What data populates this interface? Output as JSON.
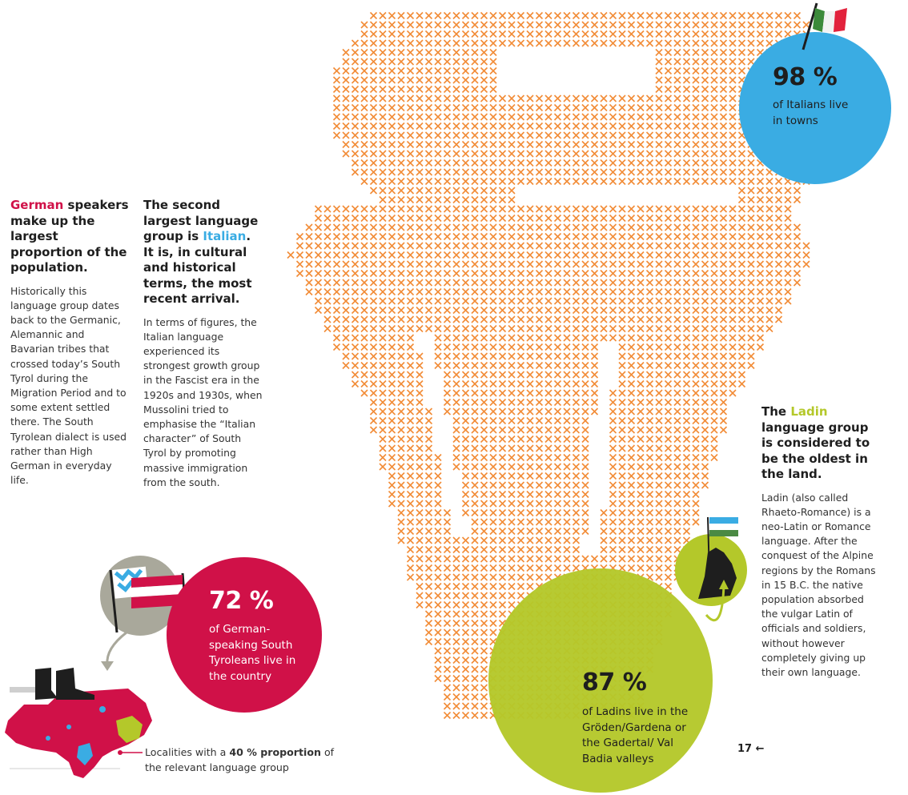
{
  "colors": {
    "german": "#d01148",
    "italian": "#3aace3",
    "ladin": "#b4c82a",
    "cross": "#f28c37",
    "grey": "#a9a89b"
  },
  "icons": [
    "cross-stitch-map",
    "italian-flag-icon",
    "tyrolean-flag-icon",
    "bavarian-flag-icon",
    "ladin-flag-icon",
    "hand-icon",
    "boots-icon",
    "south-tyrol-map"
  ],
  "german": {
    "keyword": "German",
    "heading_rest": " speakers make up the largest proportion of the population.",
    "body": "Historically this language group dates back to the Germanic, Alemannic and Bavarian tribes that crossed today’s South Tyrol during the Migration Period and to some extent settled there. The South Tyrolean dialect is used rather than High German in everyday life."
  },
  "italian": {
    "heading_pre": "The second largest language group is ",
    "keyword": "Italian",
    "heading_post": ". It is, in cultural and historical terms, the most recent arrival.",
    "body": "In terms of figures, the Italian language experienced its strongest growth group in the Fascist era in the 1920s and 1930s, when Mussolini tried to emphasise the “Italian character” of South Tyrol by promoting massive immigration from the south."
  },
  "ladin": {
    "heading_pre": "The ",
    "keyword": "Ladin",
    "heading_post": " language group is considered to be the oldest in the land.",
    "body": "Ladin (also called Rhaeto-Romance) is a neo-Latin or Romance language. After the conquest of the Alpine regions by the Romans in 15 B.C. the native population absorbed the vulgar Latin of officials and soldiers, without however completely giving up their own language."
  },
  "stats": {
    "italian": {
      "value": "98 %",
      "text": "of Italians live in towns",
      "percent": 98
    },
    "german": {
      "value": "72 %",
      "text": "of German-speaking South Tyroleans live in the country",
      "percent": 72
    },
    "ladin": {
      "value": "87 %",
      "text": "of Ladins live in the Gröden/Gardena or the Gadertal/ Val Badia valleys",
      "percent": 87
    }
  },
  "legend": {
    "pre": "Localities with a ",
    "bold": "40 % proportion",
    "post": " of the relevant language group"
  },
  "page": {
    "number": "17",
    "arrow": "←"
  }
}
